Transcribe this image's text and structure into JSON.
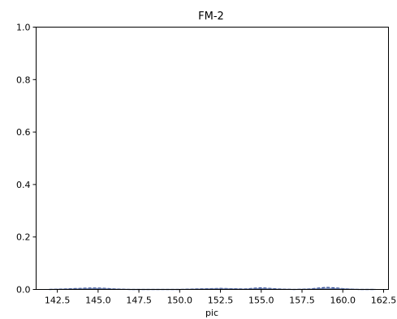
{
  "chart_data": {
    "type": "line",
    "title": "FM-2",
    "xlabel": "pic",
    "ylabel": "",
    "xlim": [
      141.2,
      162.8
    ],
    "ylim": [
      0.0,
      1.0
    ],
    "xticks": [
      142.5,
      145.0,
      147.5,
      150.0,
      152.5,
      155.0,
      157.5,
      160.0,
      162.5
    ],
    "xtick_labels": [
      "142.5",
      "145.0",
      "147.5",
      "150.0",
      "152.5",
      "155.0",
      "157.5",
      "160.0",
      "162.5"
    ],
    "yticks": [
      0.0,
      0.2,
      0.4,
      0.6,
      0.8,
      1.0
    ],
    "ytick_labels": [
      "0.0",
      "0.2",
      "0.4",
      "0.6",
      "0.8",
      "1.0"
    ],
    "grid": false,
    "series": [
      {
        "color": "#1f3a8a",
        "style": "dashed",
        "x": [
          142.0,
          143.0,
          144.0,
          144.5,
          145.0,
          145.5,
          146.0,
          147.0,
          148.0,
          149.0,
          150.0,
          151.0,
          152.0,
          152.5,
          153.0,
          154.0,
          154.5,
          155.0,
          155.5,
          156.0,
          157.0,
          158.0,
          158.5,
          159.0,
          159.5,
          160.0,
          161.0,
          162.0
        ],
        "y": [
          0.0,
          0.002,
          0.004,
          0.005,
          0.005,
          0.004,
          0.002,
          0.0,
          0.0,
          0.0,
          0.0,
          0.002,
          0.003,
          0.004,
          0.003,
          0.002,
          0.004,
          0.006,
          0.004,
          0.002,
          0.0,
          0.002,
          0.005,
          0.008,
          0.006,
          0.003,
          0.0,
          0.0
        ]
      },
      {
        "color": "#6a7fb0",
        "style": "solid",
        "x": [
          142.0,
          143.0,
          144.0,
          145.0,
          146.0,
          147.0,
          148.0,
          149.0,
          150.0,
          151.0,
          152.0,
          153.0,
          154.0,
          155.0,
          156.0,
          157.0,
          158.0,
          159.0,
          160.0,
          161.0,
          162.0
        ],
        "y": [
          0.0,
          0.001,
          0.002,
          0.003,
          0.001,
          0.0,
          0.0,
          0.0,
          0.0,
          0.001,
          0.002,
          0.002,
          0.001,
          0.003,
          0.001,
          0.0,
          0.001,
          0.004,
          0.002,
          0.0,
          0.0
        ]
      }
    ]
  }
}
